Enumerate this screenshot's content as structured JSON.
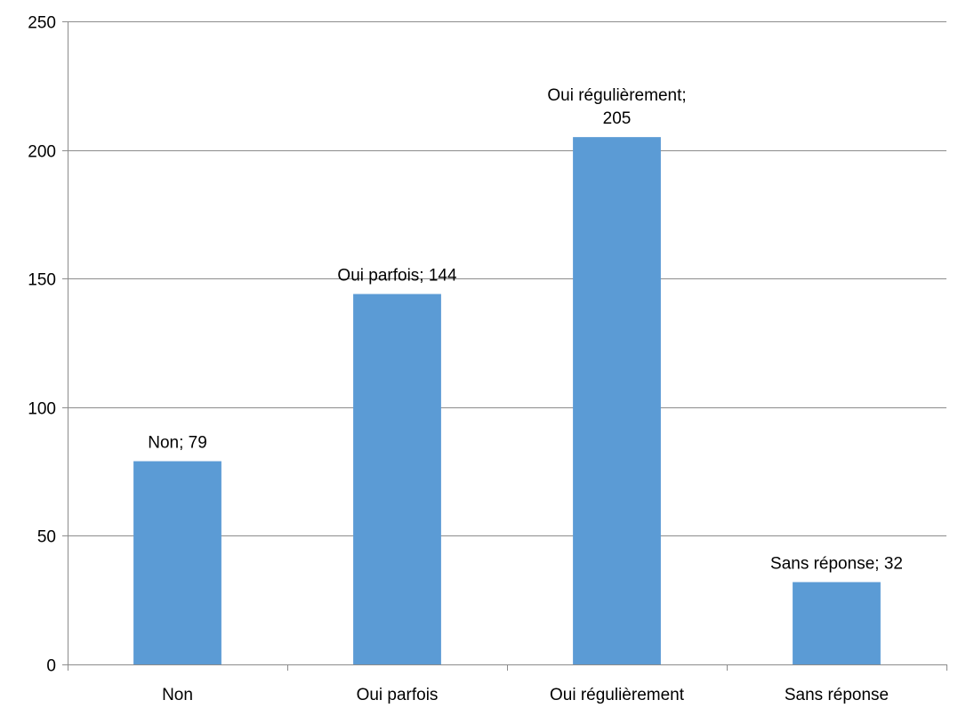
{
  "chart_data": {
    "type": "bar",
    "title": "",
    "xlabel": "",
    "ylabel": "",
    "categories": [
      "Non",
      "Oui parfois",
      "Oui régulièrement",
      "Sans réponse"
    ],
    "values": [
      79,
      144,
      205,
      32
    ],
    "data_labels": [
      [
        "Non; 79"
      ],
      [
        "Oui parfois; 144"
      ],
      [
        "Oui régulièrement;",
        "205"
      ],
      [
        "Sans réponse; 32"
      ]
    ],
    "ylim": [
      0,
      250
    ],
    "yticks": [
      0,
      50,
      100,
      150,
      200,
      250
    ],
    "grid": true,
    "legend": "none",
    "colors": {
      "bar": "#5B9BD5",
      "grid": "#8C8C8C",
      "axis": "#8C8C8C",
      "text": "#000000"
    }
  }
}
